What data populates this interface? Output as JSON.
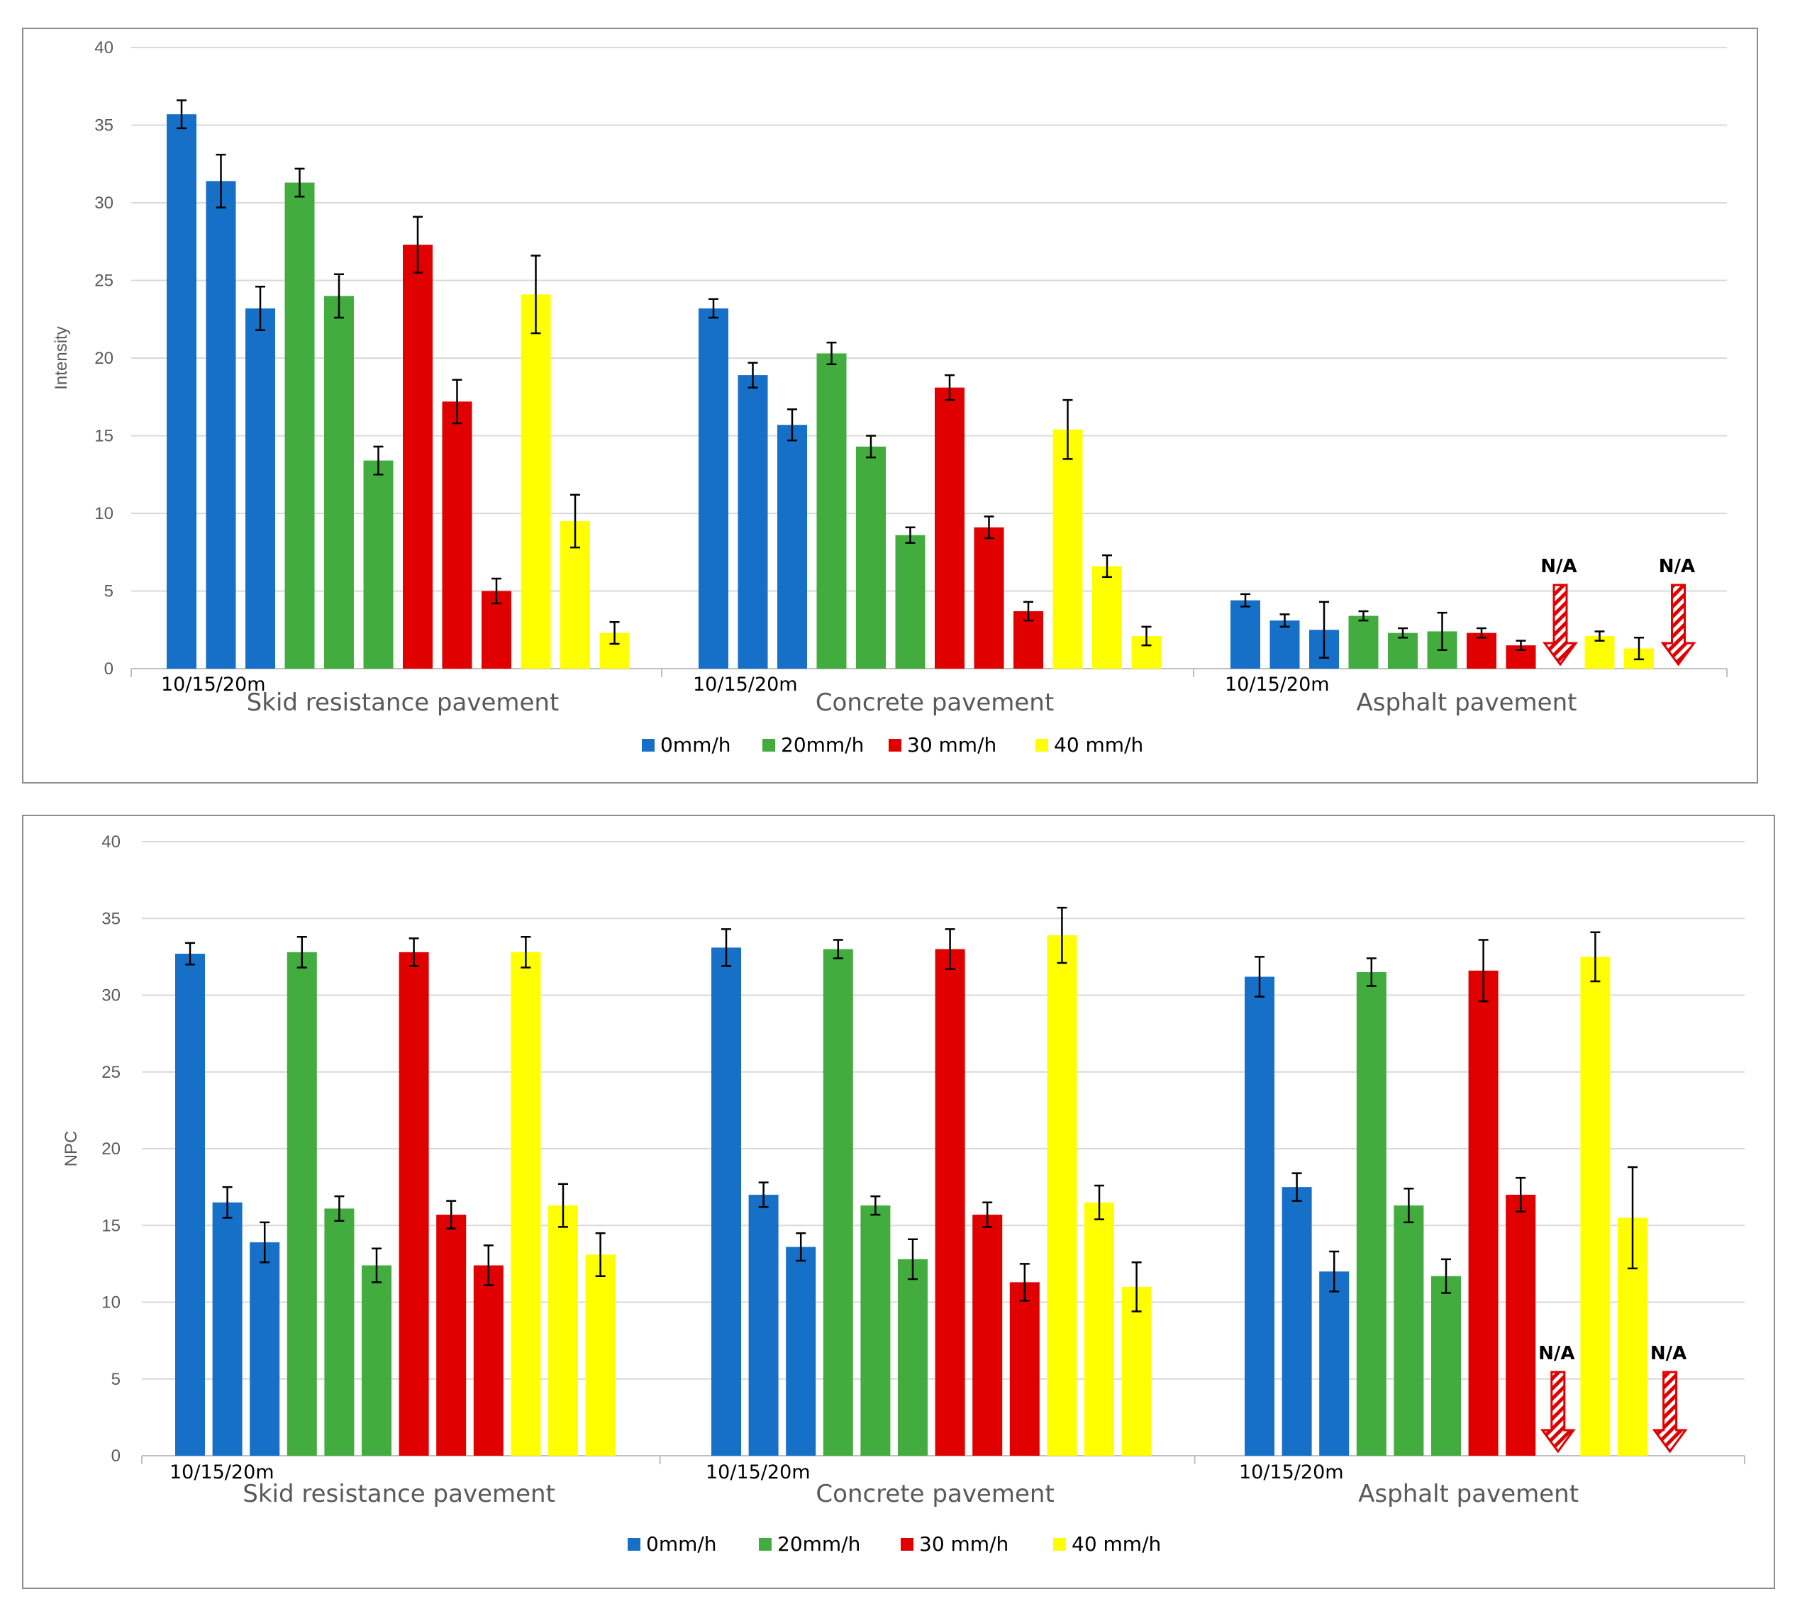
{
  "colors": {
    "0mm/h": "#1770c8",
    "20mm/h": "#43ac3f",
    "30 mm/h": "#e00000",
    "40 mm/h": "#ffff00"
  },
  "chart_data": [
    {
      "type": "bar",
      "ylabel": "Intensity",
      "ylim": [
        0,
        40
      ],
      "yticks": [
        "0",
        "5",
        "10",
        "15",
        "20",
        "25",
        "30",
        "35",
        "40"
      ],
      "categories": [
        "Skid resistance pavement",
        "Concrete pavement",
        "Asphalt pavement"
      ],
      "sublabel": "10/15/20m",
      "series_names": [
        "0mm/h",
        "20mm/h",
        "30 mm/h",
        "40 mm/h"
      ],
      "groups": [
        {
          "name": "Skid resistance pavement",
          "series": [
            {
              "name": "0mm/h",
              "values": [
                35.7,
                31.4,
                23.2
              ],
              "err": [
                0.9,
                1.7,
                1.4
              ]
            },
            {
              "name": "20mm/h",
              "values": [
                31.3,
                24.0,
                13.4
              ],
              "err": [
                0.9,
                1.4,
                0.9
              ]
            },
            {
              "name": "30 mm/h",
              "values": [
                27.3,
                17.2,
                5.0
              ],
              "err": [
                1.8,
                1.4,
                0.8
              ]
            },
            {
              "name": "40 mm/h",
              "values": [
                24.1,
                9.5,
                2.3
              ],
              "err": [
                2.5,
                1.7,
                0.7
              ]
            }
          ]
        },
        {
          "name": "Concrete pavement",
          "series": [
            {
              "name": "0mm/h",
              "values": [
                23.2,
                18.9,
                15.7
              ],
              "err": [
                0.6,
                0.8,
                1.0
              ]
            },
            {
              "name": "20mm/h",
              "values": [
                20.3,
                14.3,
                8.6
              ],
              "err": [
                0.7,
                0.7,
                0.5
              ]
            },
            {
              "name": "30 mm/h",
              "values": [
                18.1,
                9.1,
                3.7
              ],
              "err": [
                0.8,
                0.7,
                0.6
              ]
            },
            {
              "name": "40 mm/h",
              "values": [
                15.4,
                6.6,
                2.1
              ],
              "err": [
                1.9,
                0.7,
                0.6
              ]
            }
          ]
        },
        {
          "name": "Asphalt pavement",
          "series": [
            {
              "name": "0mm/h",
              "values": [
                4.4,
                3.1,
                2.5
              ],
              "err": [
                0.4,
                0.4,
                1.8
              ]
            },
            {
              "name": "20mm/h",
              "values": [
                3.4,
                2.3,
                2.4
              ],
              "err": [
                0.3,
                0.3,
                1.2
              ]
            },
            {
              "name": "30 mm/h",
              "values": [
                2.3,
                1.5,
                null
              ],
              "err": [
                0.3,
                0.3,
                null
              ]
            },
            {
              "name": "40 mm/h",
              "values": [
                2.1,
                1.3,
                null
              ],
              "err": [
                0.3,
                0.7,
                null
              ]
            }
          ]
        }
      ],
      "annotations": [
        "N/A",
        "N/A"
      ]
    },
    {
      "type": "bar",
      "ylabel": "NPC",
      "ylim": [
        0,
        40
      ],
      "yticks": [
        "0",
        "5",
        "10",
        "15",
        "20",
        "25",
        "30",
        "35",
        "40"
      ],
      "categories": [
        "Skid resistance pavement",
        "Concrete pavement",
        "Asphalt pavement"
      ],
      "sublabel": "10/15/20m",
      "series_names": [
        "0mm/h",
        "20mm/h",
        "30 mm/h",
        "40 mm/h"
      ],
      "groups": [
        {
          "name": "Skid resistance pavement",
          "series": [
            {
              "name": "0mm/h",
              "values": [
                32.7,
                16.5,
                13.9
              ],
              "err": [
                0.7,
                1.0,
                1.3
              ]
            },
            {
              "name": "20mm/h",
              "values": [
                32.8,
                16.1,
                12.4
              ],
              "err": [
                1.0,
                0.8,
                1.1
              ]
            },
            {
              "name": "30 mm/h",
              "values": [
                32.8,
                15.7,
                12.4
              ],
              "err": [
                0.9,
                0.9,
                1.3
              ]
            },
            {
              "name": "40 mm/h",
              "values": [
                32.8,
                16.3,
                13.1
              ],
              "err": [
                1.0,
                1.4,
                1.4
              ]
            }
          ]
        },
        {
          "name": "Concrete pavement",
          "series": [
            {
              "name": "0mm/h",
              "values": [
                33.1,
                17.0,
                13.6
              ],
              "err": [
                1.2,
                0.8,
                0.9
              ]
            },
            {
              "name": "20mm/h",
              "values": [
                33.0,
                16.3,
                12.8
              ],
              "err": [
                0.6,
                0.6,
                1.3
              ]
            },
            {
              "name": "30 mm/h",
              "values": [
                33.0,
                15.7,
                11.3
              ],
              "err": [
                1.3,
                0.8,
                1.2
              ]
            },
            {
              "name": "40 mm/h",
              "values": [
                33.9,
                16.5,
                11.0
              ],
              "err": [
                1.8,
                1.1,
                1.6
              ]
            }
          ]
        },
        {
          "name": "Asphalt pavement",
          "series": [
            {
              "name": "0mm/h",
              "values": [
                31.2,
                17.5,
                12.0
              ],
              "err": [
                1.3,
                0.9,
                1.3
              ]
            },
            {
              "name": "20mm/h",
              "values": [
                31.5,
                16.3,
                11.7
              ],
              "err": [
                0.9,
                1.1,
                1.1
              ]
            },
            {
              "name": "30 mm/h",
              "values": [
                31.6,
                17.0,
                null
              ],
              "err": [
                2.0,
                1.1,
                null
              ]
            },
            {
              "name": "40 mm/h",
              "values": [
                32.5,
                15.5,
                null
              ],
              "err": [
                1.6,
                3.3,
                null
              ]
            }
          ]
        }
      ],
      "annotations": [
        "N/A",
        "N/A"
      ]
    }
  ]
}
